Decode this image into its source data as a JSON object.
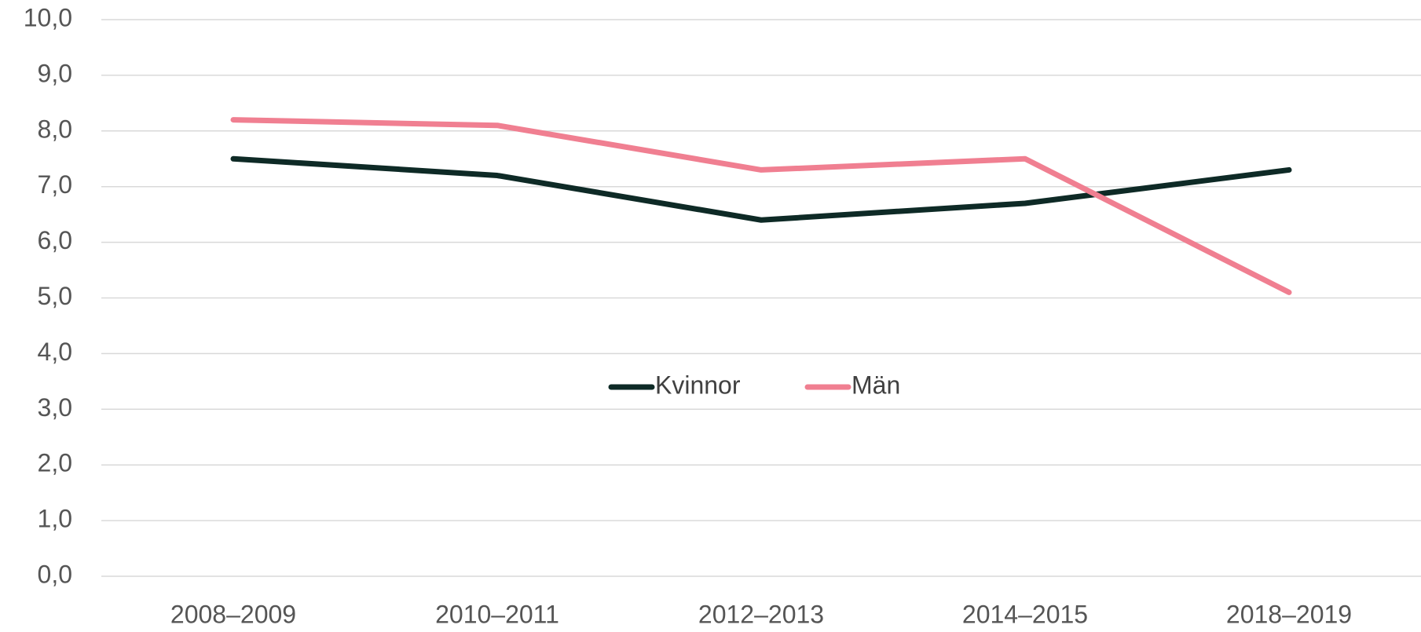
{
  "chart_data": {
    "type": "line",
    "categories": [
      "2008–2009",
      "2010–2011",
      "2012–2013",
      "2014–2015",
      "2018–2019"
    ],
    "series": [
      {
        "name": "Kvinnor",
        "color": "#0e2a26",
        "values": [
          7.5,
          7.2,
          6.4,
          6.7,
          7.3
        ]
      },
      {
        "name": "Män",
        "color": "#f07f91",
        "values": [
          8.2,
          8.1,
          7.3,
          7.5,
          5.1
        ]
      }
    ],
    "ylim": [
      0,
      10
    ],
    "yticks": [
      {
        "value": 0,
        "label": "0,0"
      },
      {
        "value": 1,
        "label": "1,0"
      },
      {
        "value": 2,
        "label": "2,0"
      },
      {
        "value": 3,
        "label": "3,0"
      },
      {
        "value": 4,
        "label": "4,0"
      },
      {
        "value": 5,
        "label": "5,0"
      },
      {
        "value": 6,
        "label": "6,0"
      },
      {
        "value": 7,
        "label": "7,0"
      },
      {
        "value": 8,
        "label": "8,0"
      },
      {
        "value": 9,
        "label": "9,0"
      },
      {
        "value": 10,
        "label": "10,0"
      }
    ],
    "grid": true,
    "legend": "center"
  }
}
